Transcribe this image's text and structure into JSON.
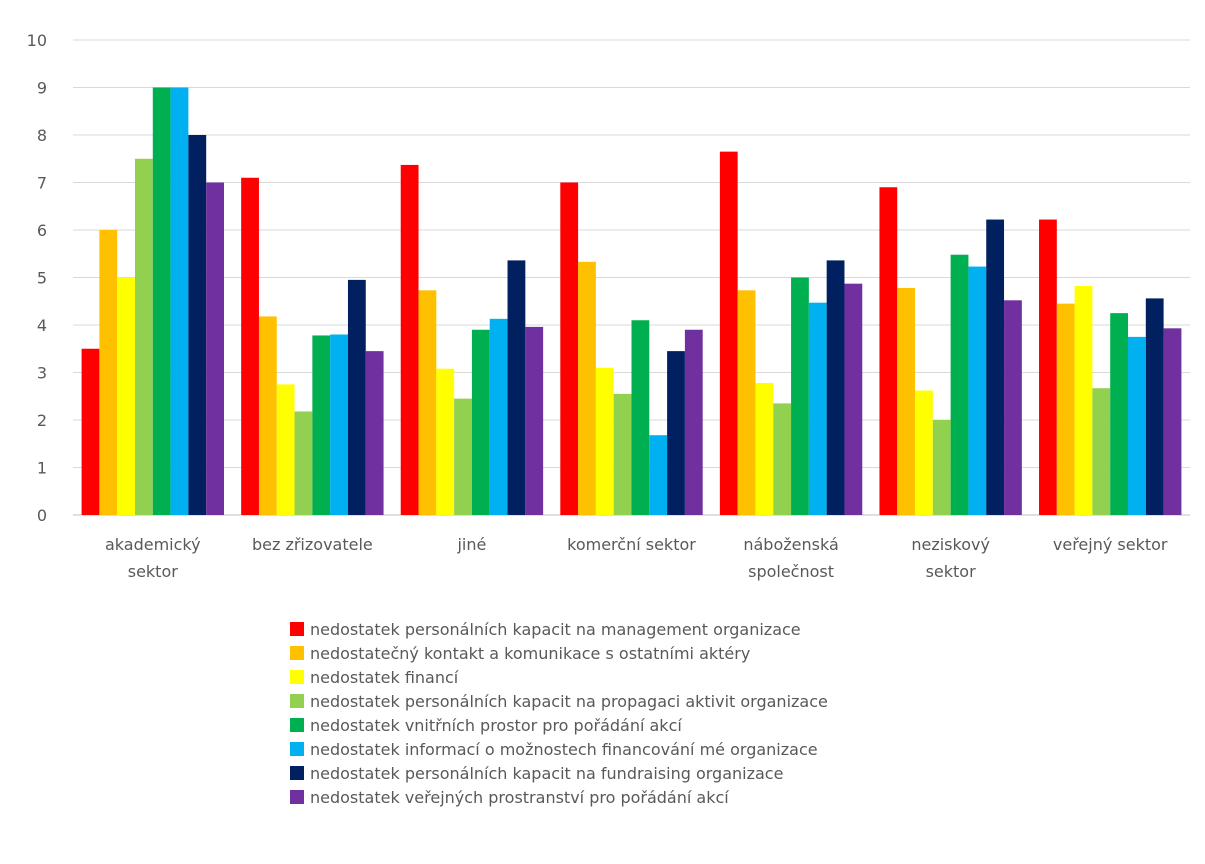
{
  "chart_data": {
    "type": "bar",
    "categories": [
      [
        "akademický",
        "sektor"
      ],
      [
        "bez zřizovatele"
      ],
      [
        "jiné"
      ],
      [
        "komerční sektor"
      ],
      [
        "náboženská",
        "společnost"
      ],
      [
        "neziskový",
        "sektor"
      ],
      [
        "veřejný sektor"
      ]
    ],
    "series": [
      {
        "name": "nedostatek personálních kapacit na management organizace",
        "color": "#ff0000",
        "values": [
          3.5,
          7.1,
          7.37,
          7.0,
          7.65,
          6.9,
          6.22
        ]
      },
      {
        "name": "nedostatečný kontakt a komunikace s ostatními aktéry",
        "color": "#ffc000",
        "values": [
          6.0,
          4.18,
          4.73,
          5.33,
          4.73,
          4.78,
          4.45
        ]
      },
      {
        "name": "nedostatek financí",
        "color": "#ffff00",
        "values": [
          5.0,
          2.75,
          3.08,
          3.1,
          2.78,
          2.62,
          4.82
        ]
      },
      {
        "name": "nedostatek personálních kapacit na propagaci aktivit organizace",
        "color": "#92d050",
        "values": [
          7.5,
          2.18,
          2.45,
          2.55,
          2.35,
          2.0,
          2.67
        ]
      },
      {
        "name": "nedostatek vnitřních prostor pro pořádání akcí",
        "color": "#00b050",
        "values": [
          9.0,
          3.78,
          3.9,
          4.1,
          5.0,
          5.48,
          4.25
        ]
      },
      {
        "name": "nedostatek informací o možnostech financování mé organizace",
        "color": "#00b0f0",
        "values": [
          9.0,
          3.8,
          4.13,
          1.68,
          4.47,
          5.23,
          3.75
        ]
      },
      {
        "name": "nedostatek personálních kapacit na fundraising organizace",
        "color": "#002060",
        "values": [
          8.0,
          4.95,
          5.36,
          3.45,
          5.36,
          6.22,
          4.56
        ]
      },
      {
        "name": "nedostatek veřejných prostranství pro pořádání akcí",
        "color": "#7030a0",
        "values": [
          7.0,
          3.45,
          3.96,
          3.9,
          4.87,
          4.52,
          3.93
        ]
      }
    ],
    "ylim": [
      0,
      10
    ],
    "yticks": [
      "0",
      "1",
      "2",
      "3",
      "4",
      "5",
      "6",
      "7",
      "8",
      "9",
      "10"
    ],
    "grid": true,
    "legend_position": "bottom"
  }
}
